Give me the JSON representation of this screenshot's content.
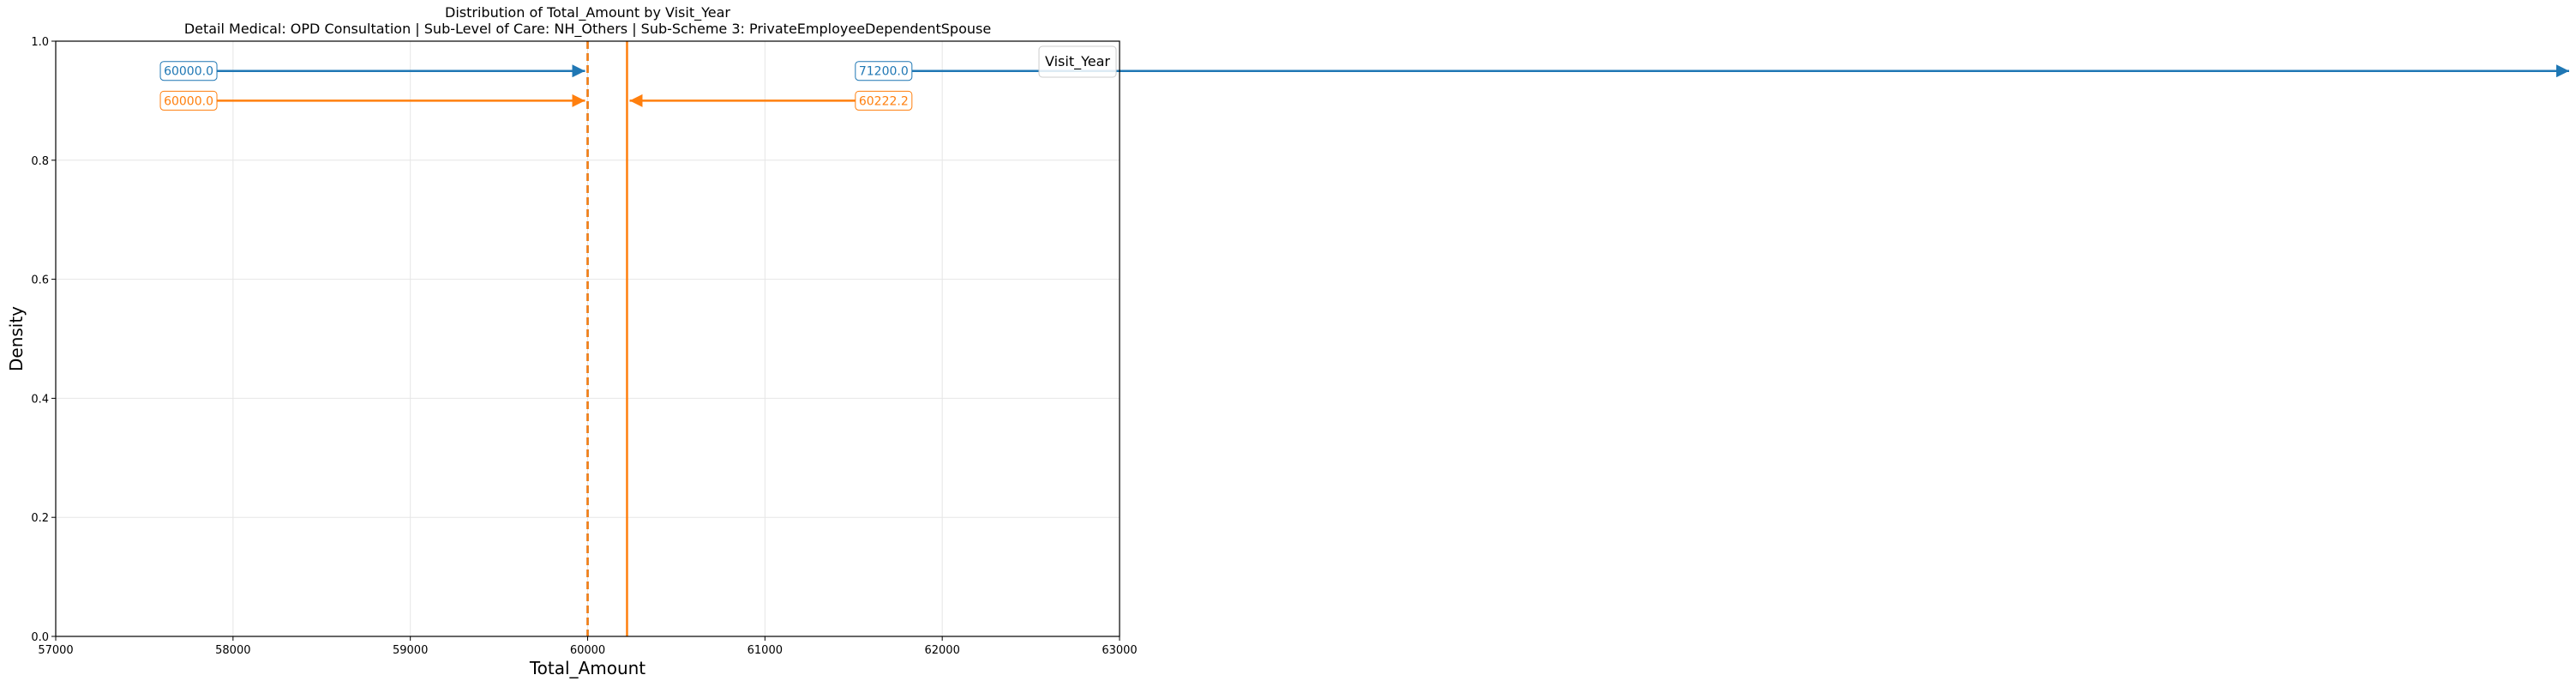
{
  "chart_data": {
    "type": "line",
    "title": "Distribution of Total_Amount by Visit_Year",
    "subtitle": "Detail Medical: OPD Consultation | Sub-Level of Care: NH_Others | Sub-Scheme 3: PrivateEmployeeDependentSpouse",
    "xlabel": "Total_Amount",
    "ylabel": "Density",
    "xlim": [
      57000,
      63000
    ],
    "ylim": [
      0,
      1.0
    ],
    "x_ticks": [
      57000,
      58000,
      59000,
      60000,
      61000,
      62000,
      63000
    ],
    "y_ticks": [
      0.0,
      0.2,
      0.4,
      0.6,
      0.8,
      1.0
    ],
    "x_tick_labels": [
      "57000",
      "58000",
      "59000",
      "60000",
      "61000",
      "62000",
      "63000"
    ],
    "y_tick_labels": [
      "0.0",
      "0.2",
      "0.4",
      "0.6",
      "0.8",
      "1.0"
    ],
    "grid": true,
    "legend": {
      "title": "Visit_Year",
      "placement": "top-right"
    },
    "series": [
      {
        "color": "#1f77b4",
        "median": 60000.0,
        "mean": 71200.0,
        "median_label": "60000.0",
        "mean_label": "71200.0",
        "annotation_y": 0.95
      },
      {
        "color": "#ff7f0e",
        "median": 60000.0,
        "mean": 60222.2,
        "median_label": "60000.0",
        "mean_label": "60222.2",
        "annotation_y": 0.9
      }
    ]
  }
}
